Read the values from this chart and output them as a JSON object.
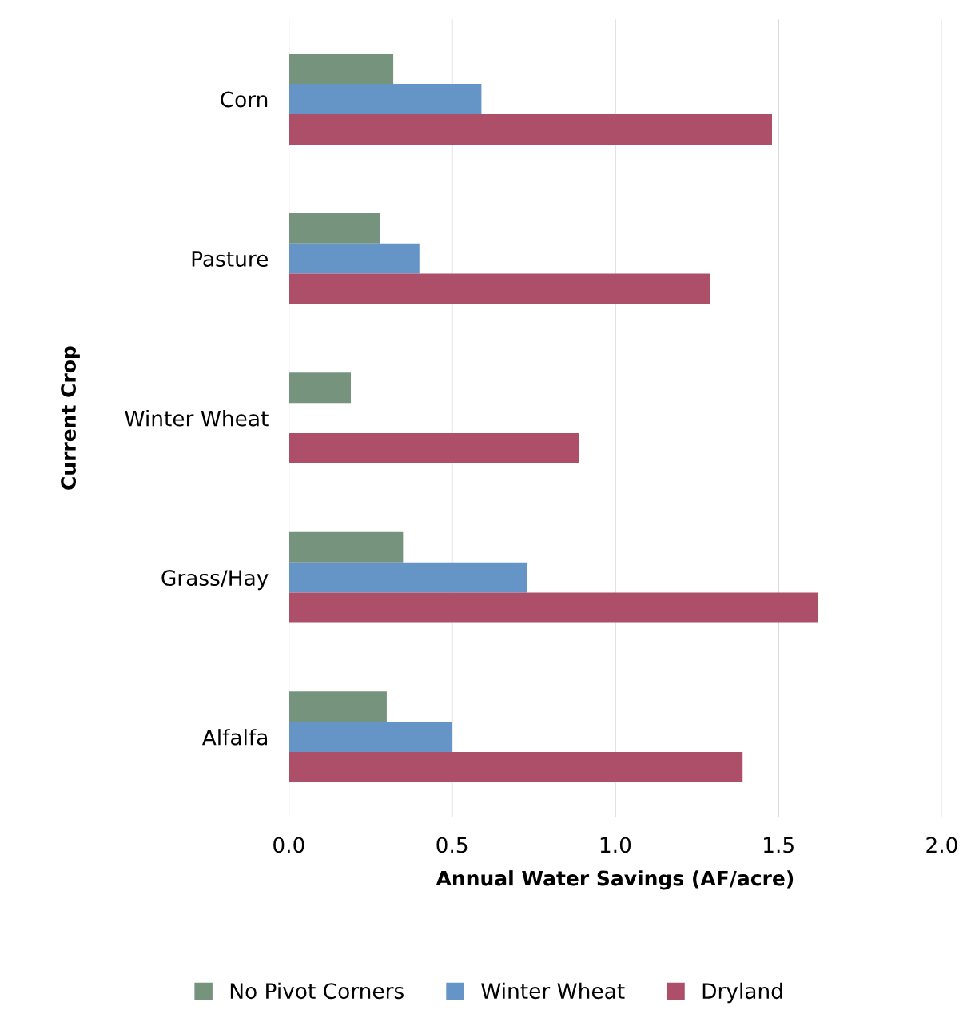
{
  "chart_data": {
    "type": "bar",
    "orientation": "horizontal",
    "xlabel": "Annual Water Savings (AF/acre)",
    "ylabel": "Current Crop",
    "categories": [
      "Corn",
      "Pasture",
      "Winter Wheat",
      "Grass/Hay",
      "Alfalfa"
    ],
    "series": [
      {
        "name": "No Pivot Corners",
        "color": "#76937e",
        "values": [
          0.32,
          0.28,
          0.19,
          0.35,
          0.3
        ]
      },
      {
        "name": "Winter Wheat",
        "color": "#6495c6",
        "values": [
          0.59,
          0.4,
          null,
          0.73,
          0.5
        ]
      },
      {
        "name": "Dryland",
        "color": "#ad4f69",
        "values": [
          1.48,
          1.29,
          0.89,
          1.62,
          1.39
        ]
      }
    ],
    "xlim": [
      0,
      2.0
    ],
    "xticks": [
      {
        "value": 0,
        "label": "0.0"
      },
      {
        "value": 0.5,
        "label": "0.5"
      },
      {
        "value": 1.0,
        "label": "1.0"
      },
      {
        "value": 1.5,
        "label": "1.5"
      },
      {
        "value": 2.0,
        "label": "2.0"
      }
    ],
    "grid": "x",
    "legend": "bottom"
  }
}
